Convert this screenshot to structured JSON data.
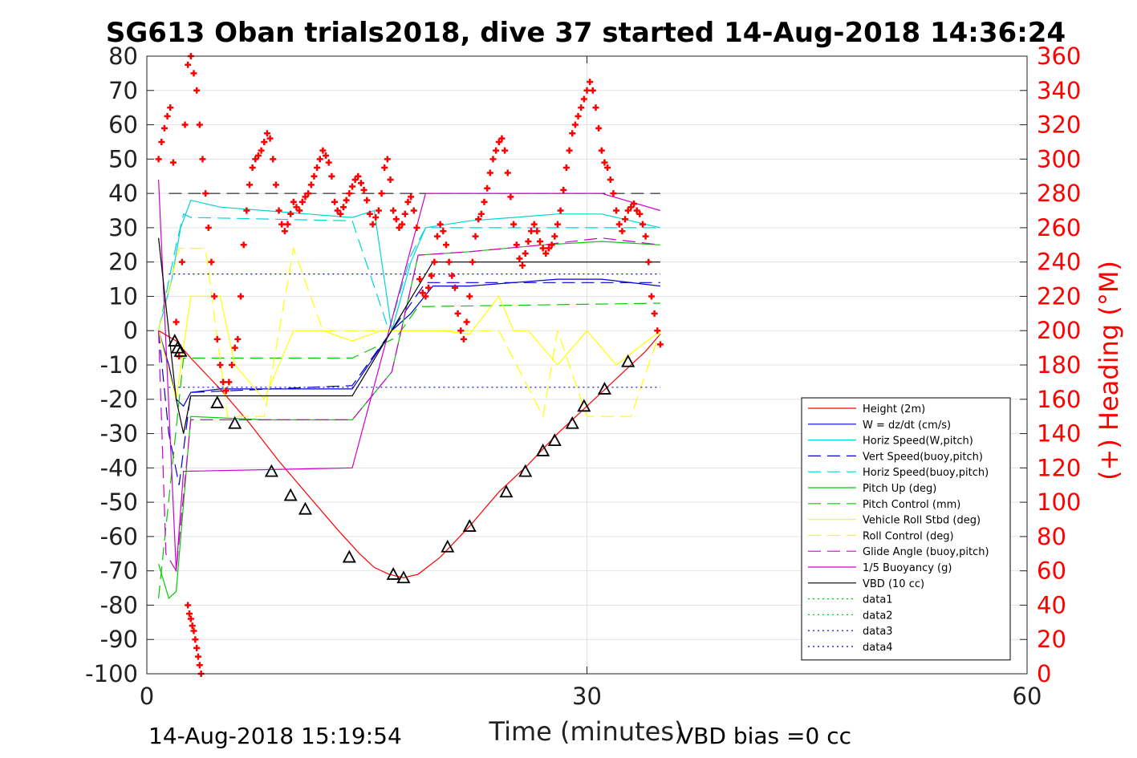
{
  "chart_data": {
    "type": "line",
    "title": "SG613 Oban trials2018, dive 37 started 14-Aug-2018 14:36:24",
    "xlabel": "Time (minutes)",
    "ylabel": "",
    "y2label": "(+) Heading (°M)",
    "xlim": [
      0,
      60
    ],
    "ylim": [
      -100,
      80
    ],
    "y2lim": [
      0,
      360
    ],
    "xticks": [
      "0",
      "30",
      "60"
    ],
    "yticks": [
      "80",
      "70",
      "60",
      "50",
      "40",
      "30",
      "20",
      "10",
      "0",
      "-10",
      "-20",
      "-30",
      "-40",
      "-50",
      "-60",
      "-70",
      "-80",
      "-90",
      "-100"
    ],
    "y2ticks": [
      "360",
      "340",
      "320",
      "300",
      "280",
      "260",
      "240",
      "220",
      "200",
      "180",
      "160",
      "140",
      "120",
      "100",
      "80",
      "60",
      "40",
      "20",
      "0"
    ],
    "grid": true,
    "legend_position": "bottom-right",
    "footer_left": "14-Aug-2018 15:19:54",
    "footer_right": "VBD bias =0 cc",
    "series": [
      {
        "name": "Height (2m)",
        "color": "#ff0000",
        "style": "solid",
        "x": [
          0.8,
          2,
          3,
          5,
          7,
          9,
          11,
          13,
          14.5,
          15.5,
          16.5,
          17.5,
          18.5,
          20,
          22,
          24,
          26,
          28,
          30,
          32,
          34,
          35
        ],
        "y": [
          0,
          -3,
          -8,
          -17,
          -27,
          -38,
          -48,
          -58,
          -65,
          -69,
          -71,
          -72,
          -71,
          -66,
          -57,
          -47,
          -39,
          -30,
          -22,
          -14,
          -6,
          -1
        ]
      },
      {
        "name": "W = dz/dt (cm/s)",
        "color": "#0000cc",
        "style": "solid",
        "x": [
          0.8,
          1.5,
          2,
          2.5,
          3,
          5,
          8,
          11,
          14,
          16.7,
          18,
          19.5,
          22,
          25,
          28,
          31,
          35
        ],
        "y": [
          0,
          -10,
          -20,
          -22,
          -18,
          -17,
          -17,
          -17,
          -17,
          0,
          5,
          13,
          13,
          14,
          15,
          15,
          13
        ]
      },
      {
        "name": "Horiz Speed(W,pitch)",
        "color": "#00d5d5",
        "style": "solid",
        "x": [
          0.8,
          1.7,
          2.3,
          3,
          5,
          8,
          11,
          14,
          15.5,
          16.7,
          18,
          19,
          22,
          25,
          28,
          31,
          35
        ],
        "y": [
          0,
          15,
          30,
          38,
          36,
          35,
          34,
          33,
          35,
          0,
          20,
          30,
          32,
          33,
          34,
          34,
          30
        ]
      },
      {
        "name": "Vert Speed(buoy,pitch)",
        "color": "#0000cc",
        "style": "dashed",
        "x": [
          0.8,
          1.5,
          2.2,
          3,
          14,
          16.7,
          19,
          35
        ],
        "y": [
          0,
          -30,
          -45,
          -18,
          -16,
          0,
          14,
          14
        ]
      },
      {
        "name": "Horiz Speed(buoy,pitch)",
        "color": "#00d5d5",
        "style": "dashed",
        "x": [
          0.8,
          2,
          2.5,
          3,
          14,
          16.5,
          18,
          19,
          35
        ],
        "y": [
          0,
          25,
          34,
          33,
          32,
          0,
          22,
          30,
          30
        ]
      },
      {
        "name": "Pitch Up (deg)",
        "color": "#00cc00",
        "style": "solid",
        "x": [
          0.8,
          1.5,
          2,
          3,
          8,
          14,
          16.7,
          18.5,
          22,
          27,
          31,
          35
        ],
        "y": [
          -68,
          -78,
          -76,
          -25,
          -26,
          -26,
          -12,
          22,
          23,
          25,
          26,
          25
        ]
      },
      {
        "name": "Pitch Control (mm)",
        "color": "#00cc00",
        "style": "dashed",
        "x": [
          0.8,
          2.5,
          14,
          17,
          18.5,
          35
        ],
        "y": [
          -78,
          -8,
          -8,
          -2,
          7,
          8
        ]
      },
      {
        "name": "Vehicle Roll Stbd (deg)",
        "color": "#ffff00",
        "style": "solid",
        "x": [
          0.8,
          2,
          3,
          5,
          6,
          8,
          10,
          12,
          14,
          16,
          18,
          20,
          22,
          24,
          25,
          26,
          28,
          30,
          32,
          35
        ],
        "y": [
          0,
          -20,
          10,
          10,
          -10,
          -20,
          0,
          0,
          -3,
          0,
          0,
          0,
          -1,
          10,
          0,
          0,
          -10,
          0,
          -10,
          0
        ]
      },
      {
        "name": "Roll Control (deg)",
        "color": "#ffff00",
        "style": "dashed",
        "x": [
          0.8,
          2.2,
          4,
          5.5,
          8,
          10,
          12,
          18,
          21,
          24,
          27,
          28,
          30,
          33,
          35
        ],
        "y": [
          0,
          24,
          24,
          -25,
          -25,
          24,
          0,
          0,
          0,
          0,
          -25,
          0,
          -25,
          -25,
          0
        ]
      },
      {
        "name": "Glide Angle (buoy,pitch)",
        "color": "#cc00cc",
        "style": "dashed",
        "x": [
          0.8,
          1.3,
          2,
          3,
          8,
          14,
          16.7,
          18.5,
          22,
          27,
          31,
          35
        ],
        "y": [
          0,
          -65,
          -70,
          -26,
          -26,
          -26,
          -12,
          22,
          23,
          25,
          27,
          25
        ]
      },
      {
        "name": "1/5 Buoyancy (g)",
        "color": "#cc00cc",
        "style": "solid",
        "x": [
          0.8,
          2,
          2.5,
          14,
          19,
          31,
          35
        ],
        "y": [
          44,
          -70,
          -41,
          -40,
          40,
          40,
          35
        ]
      },
      {
        "name": "VBD (10 cc)",
        "color": "#000000",
        "style": "solid",
        "x": [
          0.8,
          2,
          2.5,
          3,
          14,
          19.5,
          35
        ],
        "y": [
          27,
          -20,
          -30,
          -19,
          -19,
          20,
          20
        ]
      },
      {
        "name": "data1",
        "color": "#00cc00",
        "style": "dotted",
        "x": [],
        "y": []
      },
      {
        "name": "data2",
        "color": "#00cc00",
        "style": "dotted",
        "x": [],
        "y": []
      },
      {
        "name": "data3",
        "color": "#0000cc",
        "style": "dotted",
        "x": [
          1.5,
          35
        ],
        "y": [
          16.5,
          16.5
        ]
      },
      {
        "name": "data4",
        "color": "#0000cc",
        "style": "dotted",
        "x": [
          1.5,
          35
        ],
        "y": [
          -16.5,
          -16.5
        ]
      }
    ],
    "reference_lines": [
      {
        "color": "#000000",
        "style": "dashed",
        "x": [
          1.5,
          35
        ],
        "y": [
          40,
          40
        ]
      }
    ],
    "heading_points": {
      "color": "#ff0000",
      "x": [
        0.8,
        1.0,
        1.2,
        1.4,
        1.6,
        1.8,
        2.0,
        2.2,
        2.4,
        2.6,
        2.8,
        3.0,
        3.2,
        3.4,
        3.6,
        3.8,
        4.0,
        4.2,
        4.4,
        4.6,
        4.8,
        5.0,
        5.2,
        5.4,
        5.6,
        5.8,
        6.0,
        6.2,
        6.4,
        6.6,
        6.8,
        7.0,
        7.2,
        7.4,
        7.6,
        7.8,
        8.0,
        8.2,
        8.4,
        8.6,
        8.8,
        9.0,
        9.2,
        9.4,
        9.6,
        9.8,
        10.0,
        10.2,
        10.4,
        10.6,
        10.8,
        11.0,
        11.2,
        11.4,
        11.6,
        11.8,
        12.0,
        12.2,
        12.4,
        12.6,
        12.8,
        13.0,
        13.2,
        13.4,
        13.6,
        13.8,
        14.0,
        14.2,
        14.4,
        14.6,
        14.8,
        15.0,
        15.2,
        15.4,
        15.6,
        15.8,
        16.0,
        16.2,
        16.4,
        16.6,
        16.8,
        17.0,
        17.2,
        17.4,
        17.6,
        17.8,
        18.0,
        18.2,
        18.4,
        18.6,
        18.8,
        19.0,
        19.2,
        19.4,
        19.6,
        19.8,
        20.0,
        20.2,
        20.4,
        20.6,
        20.8,
        21.0,
        21.2,
        21.4,
        21.6,
        21.8,
        22.0,
        22.2,
        22.4,
        22.6,
        22.8,
        23.0,
        23.2,
        23.4,
        23.6,
        23.8,
        24.0,
        24.2,
        24.4,
        24.6,
        24.8,
        25.0,
        25.2,
        25.4,
        25.6,
        25.8,
        26.0,
        26.2,
        26.4,
        26.6,
        26.8,
        27.0,
        27.2,
        27.4,
        27.6,
        27.8,
        28.0,
        28.2,
        28.4,
        28.6,
        28.8,
        29.0,
        29.2,
        29.4,
        29.6,
        29.8,
        30.0,
        30.2,
        30.4,
        30.6,
        30.8,
        31.0,
        31.2,
        31.4,
        31.6,
        31.8,
        32.0,
        32.2,
        32.4,
        32.6,
        32.8,
        33.0,
        33.2,
        33.4,
        33.6,
        33.8,
        34.0,
        34.2,
        34.4,
        34.6,
        34.8,
        35.0,
        2.8,
        2.9,
        3.0,
        3.1,
        3.2,
        3.3,
        3.4,
        3.5,
        3.6,
        3.7
      ],
      "y": [
        300,
        310,
        318,
        325,
        330,
        298,
        205,
        185,
        240,
        320,
        355,
        360,
        350,
        340,
        320,
        300,
        280,
        260,
        240,
        220,
        195,
        180,
        170,
        165,
        170,
        180,
        190,
        195,
        220,
        250,
        270,
        285,
        295,
        300,
        302,
        305,
        310,
        315,
        312,
        300,
        285,
        270,
        262,
        258,
        262,
        268,
        275,
        272,
        270,
        275,
        278,
        280,
        285,
        290,
        295,
        300,
        305,
        302,
        298,
        290,
        275,
        270,
        268,
        272,
        276,
        280,
        284,
        288,
        290,
        286,
        282,
        276,
        268,
        262,
        266,
        270,
        280,
        295,
        300,
        288,
        270,
        265,
        260,
        262,
        268,
        275,
        278,
        270,
        260,
        230,
        222,
        220,
        225,
        232,
        240,
        255,
        262,
        258,
        250,
        240,
        232,
        225,
        210,
        200,
        195,
        205,
        220,
        240,
        255,
        265,
        268,
        275,
        283,
        292,
        300,
        305,
        310,
        312,
        305,
        292,
        278,
        262,
        250,
        242,
        238,
        245,
        252,
        258,
        262,
        258,
        252,
        248,
        245,
        248,
        250,
        255,
        262,
        270,
        282,
        295,
        305,
        315,
        320,
        325,
        330,
        335,
        340,
        345,
        340,
        330,
        318,
        305,
        298,
        295,
        288,
        280,
        270,
        262,
        258,
        265,
        270,
        272,
        274,
        270,
        268,
        262,
        255,
        240,
        220,
        210,
        200,
        192,
        40,
        35,
        32,
        28,
        25,
        20,
        15,
        10,
        5,
        0
      ]
    },
    "waypoints": {
      "color": "#000000",
      "x": [
        1.9,
        2.1,
        2.3,
        4.8,
        6.0,
        8.5,
        9.8,
        10.8,
        13.8,
        16.8,
        17.5,
        20.5,
        22.0,
        24.5,
        25.8,
        27.0,
        27.8,
        29.0,
        29.8,
        31.2,
        32.8
      ],
      "y": [
        -3,
        -5,
        -6,
        -21,
        -27,
        -41,
        -48,
        -52,
        -66,
        -71,
        -72,
        -63,
        -57,
        -47,
        -41,
        -35,
        -32,
        -27,
        -22,
        -17,
        -9
      ]
    }
  }
}
